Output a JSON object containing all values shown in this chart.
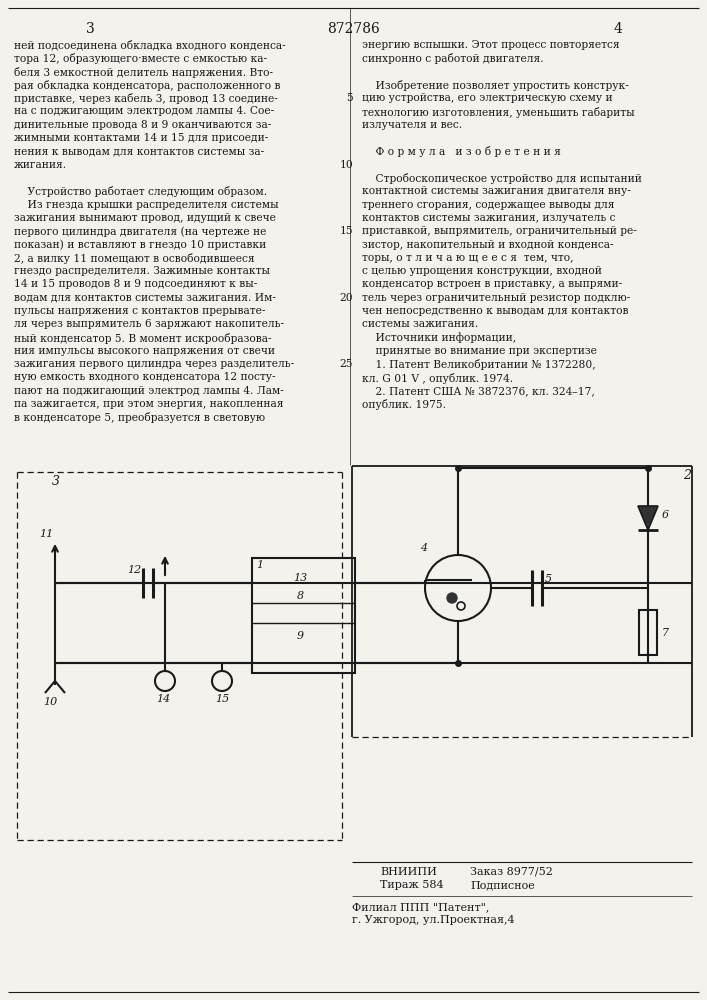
{
  "title_number": "872786",
  "page_left": "3",
  "page_right": "4",
  "text_left": [
    "ней подсоединена обкладка входного конденса-",
    "тора 12, образующего·вместе с емкостью ка-",
    "беля 3 емкостной делитель напряжения. Вто-",
    "рая обкладка конденсатора, расположенного в",
    "приставке, через кабель 3, провод 13 соедине-",
    "на с поджигающим электродом лампы 4. Сое-",
    "динительные провода 8 и 9 оканчиваются за-",
    "жимными контактами 14 и 15 для присоеди-",
    "нения к выводам для контактов системы за-",
    "жигания.",
    "",
    "    Устройство работает следующим образом.",
    "    Из гнезда крышки распределителя системы",
    "зажигания вынимают провод, идущий к свече",
    "первого цилиндра двигателя (на чертеже не",
    "показан) и вставляют в гнездо 10 приставки",
    "2, а вилку 11 помещают в освободившееся",
    "гнездо распределителя. Зажимные контакты",
    "14 и 15 проводов 8 и 9 подсоединяют к вы-",
    "водам для контактов системы зажигания. Им-",
    "пульсы напряжения с контактов прерывате-",
    "ля через выпрямитель 6 заряжают накопитель-",
    "ный конденсатор 5. В момент искрообразова-",
    "ния импульсы высокого напряжения от свечи",
    "зажигания первого цилиндра через разделитель-",
    "ную емкость входного конденсатора 12 посту-",
    "пают на поджигающий электрод лампы 4. Лам-",
    "па зажигается, при этом энергия, накопленная",
    "в конденсаторе 5, преобразуется в световую"
  ],
  "text_right": [
    "энергию вспышки. Этот процесс повторяется",
    "синхронно с работой двигателя.",
    "",
    "    Изобретение позволяет упростить конструк-",
    "цию устройства, его электрическую схему и",
    "технологию изготовления, уменьшить габариты",
    "излучателя и вес.",
    "",
    "    Ф о р м у л а   и з о б р е т е н и я",
    "",
    "    Стробоскопическое устройство для испытаний",
    "контактной системы зажигания двигателя вну-",
    "треннего сгорания, содержащее выводы для",
    "контактов системы зажигания, излучатель с",
    "приставкой, выпрямитель, ограничительный ре-",
    "зистор, накопительный и входной конденса-",
    "торы, о т л и ч а ю щ е е с я  тем, что,",
    "с целью упрощения конструкции, входной",
    "конденсатор встроен в приставку, а выпрями-",
    "тель через ограничительный резистор подклю-",
    "чен непосредственно к выводам для контактов",
    "системы зажигания.",
    "    Источники информации,",
    "    принятые во внимание при экспертизе",
    "    1. Патент Великобритании № 1372280,",
    "кл. G 01 V , опублик. 1974.",
    "    2. Патент США № 3872376, кл. 324–17,",
    "опублик. 1975."
  ],
  "line_numbers": [
    [
      5,
      4
    ],
    [
      10,
      9
    ],
    [
      15,
      14
    ],
    [
      20,
      19
    ],
    [
      25,
      24
    ]
  ],
  "footer_vniiipi": "ВНИИПИ",
  "footer_zakaz": "Заказ 8977/52",
  "footer_tirazh": "Тираж 584",
  "footer_podpisnoe": "Подписное",
  "footer_filial": "Филиал ППП \"Патент\",",
  "footer_address": "г. Ужгород, ул.Проектная,4",
  "bg_color": "#f4f2ed",
  "text_color": "#1a1a1a",
  "line_color": "#1a1a1a"
}
